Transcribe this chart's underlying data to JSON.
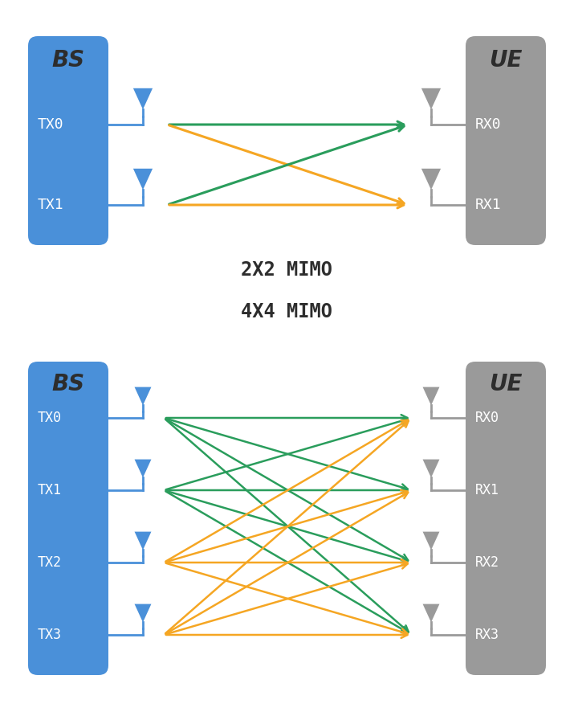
{
  "bg_color": "#ffffff",
  "bs_color": "#4a90d9",
  "ue_color": "#9a9a9a",
  "antenna_tx_color": "#4a90d9",
  "antenna_rx_color": "#9a9a9a",
  "green_color": "#2a9d5c",
  "orange_color": "#f5a623",
  "title_2x2": "2X2 MIMO",
  "title_4x4": "4X4 MIMO",
  "bs_label": "BS",
  "ue_label": "UE",
  "tx_labels_2x2": [
    "TX0",
    "TX1"
  ],
  "rx_labels_2x2": [
    "RX0",
    "RX1"
  ],
  "tx_labels_4x4": [
    "TX0",
    "TX1",
    "TX2",
    "TX3"
  ],
  "rx_labels_4x4": [
    "RX0",
    "RX1",
    "RX2",
    "RX3"
  ],
  "label_color_bs": "#333333",
  "label_color_ue": "#333333"
}
